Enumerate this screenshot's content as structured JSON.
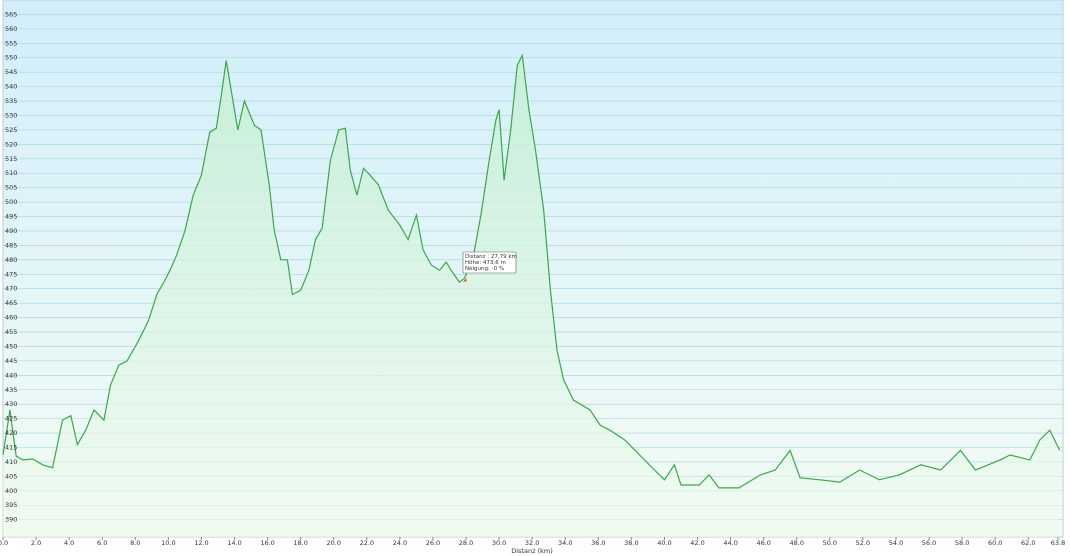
{
  "chart_data": {
    "type": "area",
    "x_label": "Distanz  (km)",
    "x": [
      0,
      0.42,
      0.8,
      1.2,
      1.8,
      2.4,
      3.0,
      3.6,
      4.1,
      4.5,
      5.0,
      5.5,
      6.1,
      6.5,
      7.0,
      7.5,
      8.2,
      8.8,
      9.3,
      9.8,
      10.1,
      10.5,
      11.0,
      11.5,
      12.0,
      12.5,
      12.9,
      13.2,
      13.5,
      13.8,
      14.2,
      14.6,
      15.2,
      15.6,
      16.1,
      16.4,
      16.8,
      17.2,
      17.5,
      18.0,
      18.5,
      18.9,
      19.3,
      19.8,
      20.3,
      20.7,
      21.0,
      21.4,
      21.8,
      22.2,
      22.7,
      23.3,
      24.0,
      24.5,
      25.0,
      25.4,
      25.9,
      26.4,
      26.8,
      27.1,
      27.6,
      27.9,
      28.4,
      28.9,
      29.4,
      29.8,
      30.0,
      30.3,
      30.7,
      31.1,
      31.4,
      31.8,
      32.2,
      32.7,
      33.1,
      33.5,
      33.9,
      34.5,
      35.5,
      36.1,
      36.7,
      37.6,
      38.5,
      39.4,
      40.0,
      40.6,
      41.0,
      42.1,
      42.7,
      43.3,
      44.5,
      45.8,
      46.7,
      47.6,
      48.2,
      49.4,
      50.6,
      51.8,
      53.0,
      54.2,
      55.5,
      56.7,
      57.9,
      58.8,
      60.3,
      60.9,
      62.1,
      62.7,
      63.3,
      63.9
    ],
    "values": [
      412.4,
      428,
      412,
      410.7,
      411,
      409,
      408,
      424.5,
      426,
      416,
      421,
      428,
      424.5,
      436.6,
      443.5,
      445,
      452,
      459,
      468,
      473,
      476.4,
      481.6,
      490,
      502.4,
      509.3,
      524.2,
      525.6,
      537,
      549,
      538.7,
      525,
      535,
      526.6,
      525,
      506,
      490.3,
      480,
      480,
      468,
      469.5,
      476.4,
      487,
      491,
      514.5,
      525,
      525.6,
      511,
      502.4,
      511.7,
      509.3,
      506,
      497.2,
      492,
      487,
      495.5,
      483.5,
      478.2,
      476.4,
      479.2,
      476.4,
      472.3,
      473.6,
      479.8,
      495.5,
      514.5,
      528.3,
      532,
      507.6,
      525,
      547.4,
      550.8,
      532,
      518,
      497.2,
      469.5,
      448.7,
      438.4,
      431.4,
      428,
      422.8,
      421,
      417.6,
      412.4,
      407.2,
      403.8,
      409,
      402,
      402,
      405.5,
      401,
      401,
      405.5,
      407.2,
      414,
      404.5,
      403.8,
      403,
      407.2,
      403.8,
      405.5,
      409,
      407.2,
      414,
      407.2,
      410.7,
      412.4,
      410.7,
      417.6,
      421,
      414
    ],
    "color": "#3aa84a",
    "xlim": [
      0,
      64.1
    ],
    "ylim": [
      384,
      570
    ],
    "xticks": [
      {
        "value": 0,
        "label": "0.0"
      },
      {
        "value": 2,
        "label": "2.0"
      },
      {
        "value": 4,
        "label": "4.0"
      },
      {
        "value": 6,
        "label": "6.0"
      },
      {
        "value": 8,
        "label": "8.0"
      },
      {
        "value": 10,
        "label": "10.0"
      },
      {
        "value": 12,
        "label": "12.0"
      },
      {
        "value": 14,
        "label": "14.0"
      },
      {
        "value": 16,
        "label": "16.0"
      },
      {
        "value": 18,
        "label": "18.0"
      },
      {
        "value": 20,
        "label": "20.0"
      },
      {
        "value": 22,
        "label": "22.0"
      },
      {
        "value": 24,
        "label": "24.0"
      },
      {
        "value": 26,
        "label": "26.0"
      },
      {
        "value": 28,
        "label": "28.0"
      },
      {
        "value": 30,
        "label": "30.0"
      },
      {
        "value": 32,
        "label": "32.0"
      },
      {
        "value": 34,
        "label": "34.0"
      },
      {
        "value": 36,
        "label": "36.0"
      },
      {
        "value": 38,
        "label": "38.0"
      },
      {
        "value": 40,
        "label": "40.0"
      },
      {
        "value": 42,
        "label": "42.0"
      },
      {
        "value": 44,
        "label": "44.0"
      },
      {
        "value": 46,
        "label": "46.0"
      },
      {
        "value": 48,
        "label": "48.0"
      },
      {
        "value": 50,
        "label": "50.0"
      },
      {
        "value": 52,
        "label": "52.0"
      },
      {
        "value": 54,
        "label": "54.0"
      },
      {
        "value": 56,
        "label": "56.0"
      },
      {
        "value": 58,
        "label": "58.0"
      },
      {
        "value": 60,
        "label": "60.0"
      },
      {
        "value": 62,
        "label": "62.0"
      },
      {
        "value": 63.8,
        "label": "63.8"
      }
    ],
    "yticks": [
      390,
      395,
      400,
      405,
      410,
      415,
      420,
      425,
      430,
      435,
      440,
      445,
      450,
      455,
      460,
      465,
      470,
      475,
      480,
      485,
      490,
      495,
      500,
      505,
      510,
      515,
      520,
      525,
      530,
      535,
      540,
      545,
      550,
      555,
      560,
      565
    ],
    "grid": true,
    "tooltip": [
      "Distanz : 27,79 km",
      "Höhe: 473,6 m",
      "Neigung: -0 %"
    ]
  }
}
